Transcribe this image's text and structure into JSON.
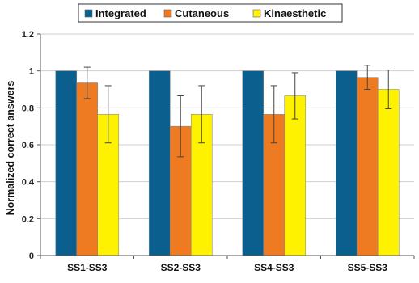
{
  "chart_data": {
    "type": "bar",
    "title": "",
    "xlabel": "",
    "ylabel": "Normalized correct answers",
    "ylim": [
      0,
      1.2
    ],
    "yticks": [
      "0",
      "0.2",
      "0.4",
      "0.6",
      "0.8",
      "1",
      "1.2"
    ],
    "grid": true,
    "legend_position": "top",
    "categories": [
      "SS1-SS3",
      "SS2-SS3",
      "SS4-SS3",
      "SS5-SS3"
    ],
    "series": [
      {
        "name": "Integrated",
        "color": "#0b5f8f",
        "values": [
          1.0,
          1.0,
          1.0,
          1.0
        ],
        "errors": [
          0,
          0,
          0,
          0
        ]
      },
      {
        "name": "Cutaneous",
        "color": "#ee7a22",
        "values": [
          0.935,
          0.7,
          0.765,
          0.965
        ],
        "errors": [
          0.085,
          0.165,
          0.155,
          0.065
        ]
      },
      {
        "name": "Kinaesthetic",
        "color": "#fff200",
        "values": [
          0.765,
          0.765,
          0.865,
          0.9
        ],
        "errors": [
          0.155,
          0.155,
          0.125,
          0.105
        ]
      }
    ]
  }
}
